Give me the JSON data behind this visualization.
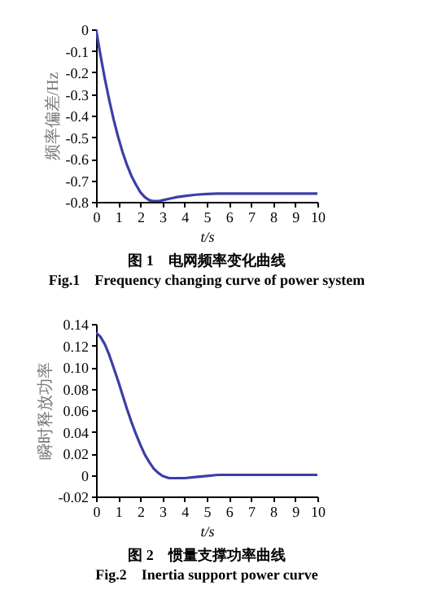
{
  "chart_data": [
    {
      "type": "line",
      "xlabel": "t/s",
      "ylabel": "频率偏差/Hz",
      "annotations": [
        "图 1　电网频率变化曲线",
        "Fig.1　Frequency changing curve of power system"
      ],
      "x": [
        0,
        0.2,
        0.4,
        0.6,
        0.8,
        1,
        1.2,
        1.4,
        1.6,
        1.8,
        2,
        2.2,
        2.4,
        2.6,
        2.8,
        3,
        3.3,
        3.6,
        4,
        4.5,
        5,
        5.5,
        6,
        7,
        8,
        9,
        10
      ],
      "series": [
        {
          "color": "#3b3fa6",
          "values": [
            0,
            -0.12,
            -0.23,
            -0.33,
            -0.42,
            -0.5,
            -0.57,
            -0.63,
            -0.68,
            -0.72,
            -0.755,
            -0.778,
            -0.792,
            -0.797,
            -0.797,
            -0.793,
            -0.786,
            -0.779,
            -0.773,
            -0.767,
            -0.764,
            -0.762,
            -0.762,
            -0.762,
            -0.762,
            -0.762,
            -0.762
          ]
        }
      ],
      "xlim": [
        0,
        10
      ],
      "xticks": [
        0,
        1,
        2,
        3,
        4,
        5,
        6,
        7,
        8,
        9,
        10
      ],
      "ylim": [
        -0.8,
        0
      ],
      "yticks": [
        -0.8,
        -0.7,
        -0.6,
        -0.5,
        -0.4,
        -0.3,
        -0.2,
        -0.1,
        0
      ],
      "grid": false,
      "legend": false,
      "line_style": "solid"
    },
    {
      "type": "line",
      "xlabel": "t/s",
      "ylabel": "瞬时释放功率",
      "annotations": [
        "图 2　惯量支撑功率曲线",
        "Fig.2　Inertia support power curve"
      ],
      "x": [
        0,
        0.2,
        0.4,
        0.6,
        0.8,
        1,
        1.2,
        1.4,
        1.6,
        1.8,
        2,
        2.2,
        2.4,
        2.6,
        2.8,
        3,
        3.3,
        3.6,
        4,
        4.5,
        5,
        5.5,
        6,
        7,
        8,
        9,
        10
      ],
      "series": [
        {
          "color": "#3b3fa6",
          "values": [
            0.132,
            0.128,
            0.121,
            0.111,
            0.099,
            0.087,
            0.074,
            0.061,
            0.049,
            0.038,
            0.028,
            0.019,
            0.012,
            0.006,
            0.002,
            -0.001,
            -0.003,
            -0.003,
            -0.003,
            -0.002,
            -0.001,
            0,
            0,
            0,
            0,
            0,
            0
          ]
        }
      ],
      "xlim": [
        0,
        10
      ],
      "xticks": [
        0,
        1,
        2,
        3,
        4,
        5,
        6,
        7,
        8,
        9,
        10
      ],
      "ylim": [
        -0.02,
        0.14
      ],
      "yticks": [
        {
          "value": -0.02,
          "label": "-0.02"
        },
        0,
        {
          "value": 0.02,
          "label": "0.02"
        },
        {
          "value": 0.04,
          "label": "0.04"
        },
        {
          "value": 0.06,
          "label": "0.06"
        },
        {
          "value": 0.08,
          "label": "0.08"
        },
        {
          "value": 0.1,
          "label": "0.10"
        },
        {
          "value": 0.12,
          "label": "0.12"
        },
        {
          "value": 0.14,
          "label": "0.14"
        }
      ],
      "grid": false,
      "legend": false,
      "line_style": "solid"
    }
  ]
}
